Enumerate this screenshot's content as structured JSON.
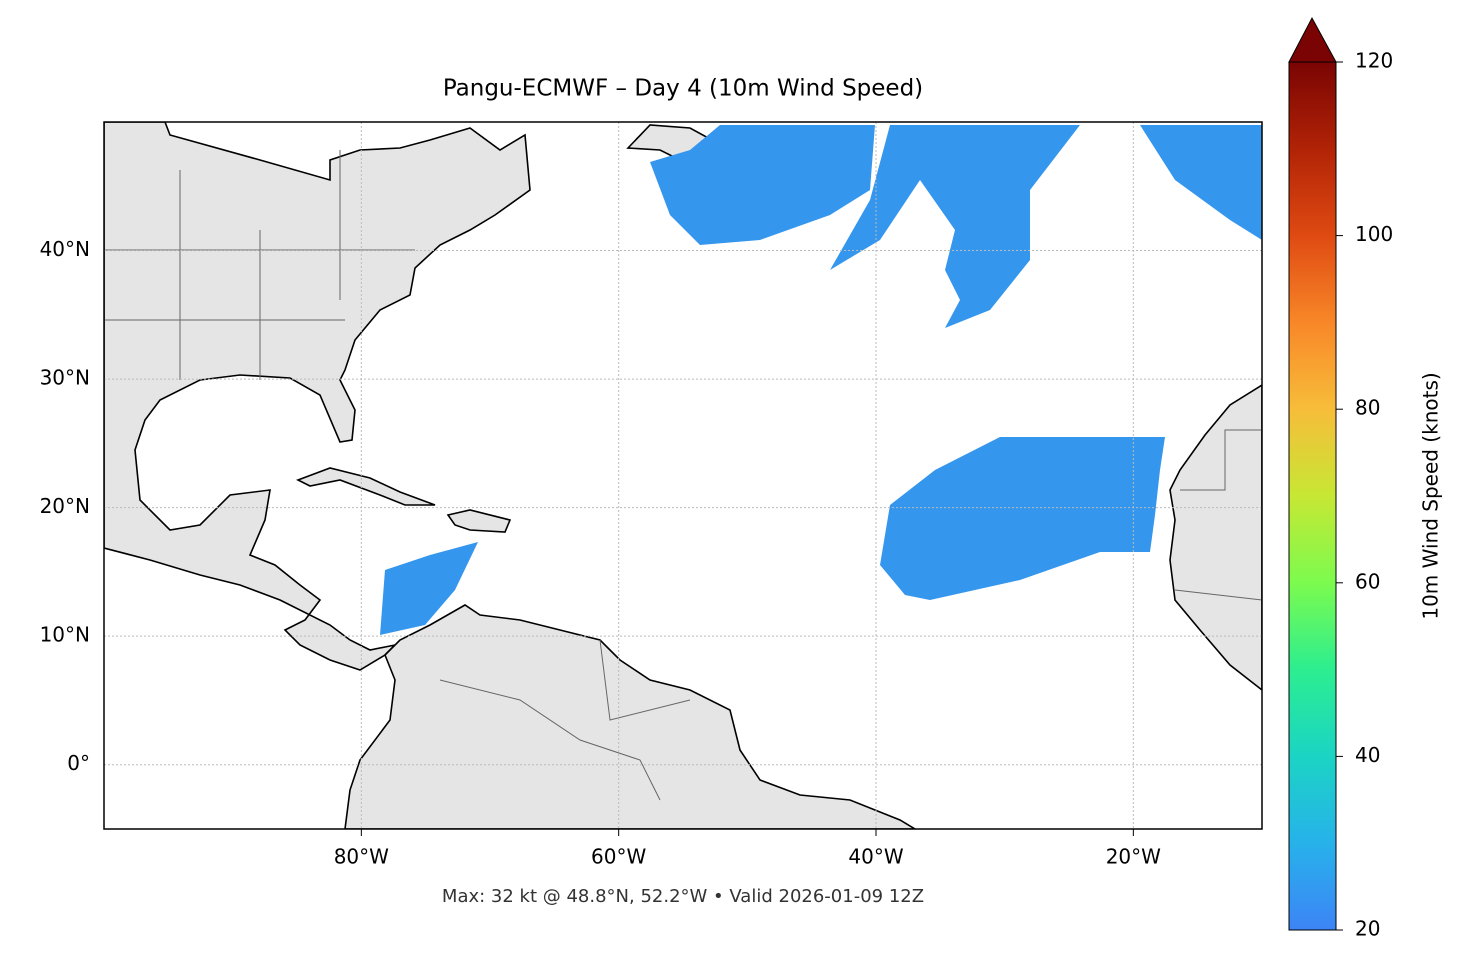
{
  "map": {
    "title": "Pangu-ECMWF – Day 4 (10m Wind Speed)",
    "footer": "Max: 32 kt @ 48.8°N, 52.2°W • Valid 2026-01-09 12Z",
    "xlim": [
      -100,
      -10
    ],
    "ylim": [
      -5,
      50
    ],
    "xticks": [
      {
        "value": -80,
        "label": "80°W"
      },
      {
        "value": -60,
        "label": "60°W"
      },
      {
        "value": -40,
        "label": "40°W"
      },
      {
        "value": -20,
        "label": "20°W"
      }
    ],
    "yticks": [
      {
        "value": 0,
        "label": "0°"
      },
      {
        "value": 10,
        "label": "10°N"
      },
      {
        "value": 20,
        "label": "20°N"
      },
      {
        "value": 30,
        "label": "30°N"
      },
      {
        "value": 40,
        "label": "40°N"
      }
    ],
    "grid": true,
    "colorbar": {
      "label": "10m Wind Speed (knots)",
      "lim": [
        20,
        120
      ],
      "ticks": [
        20,
        40,
        60,
        80,
        100,
        120
      ]
    }
  }
}
